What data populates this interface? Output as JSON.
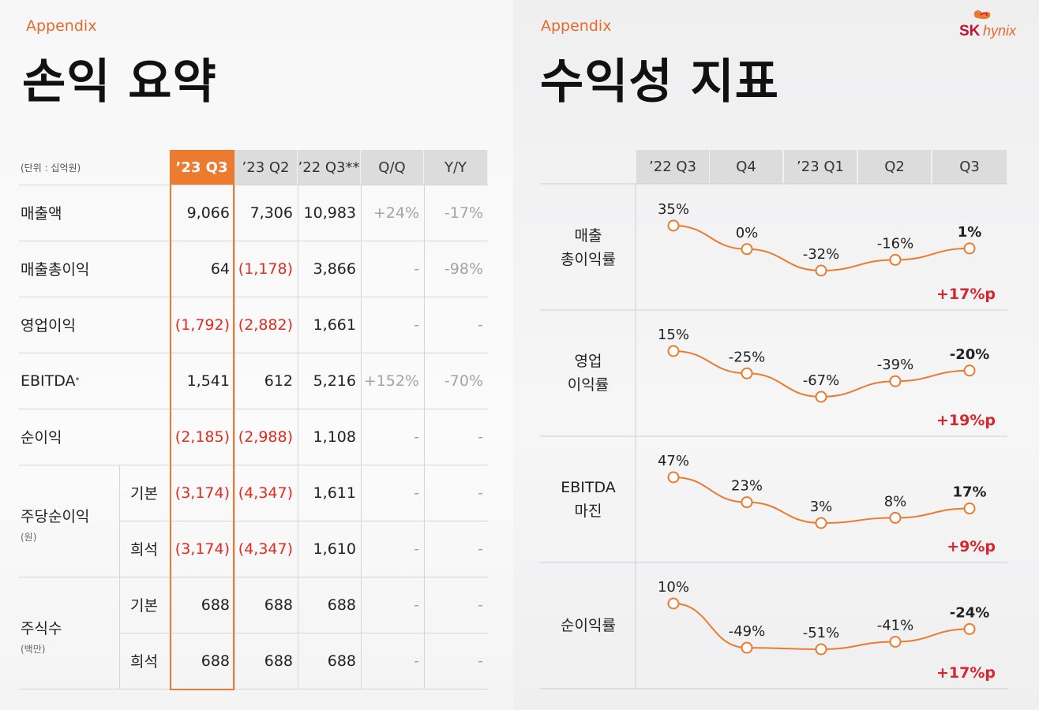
{
  "left": {
    "appendix": "Appendix",
    "title": "손익 요약",
    "unit": "(단위 : 십억원)",
    "columns": [
      "’23 Q3",
      "’23 Q2",
      "’22 Q3**",
      "Q/Q",
      "Y/Y"
    ],
    "rows": [
      {
        "label": "매출액",
        "values": [
          "9,066",
          "7,306",
          "10,983",
          "+24%",
          "-17%"
        ]
      },
      {
        "label": "매출총이익",
        "values": [
          "64",
          "(1,178)",
          "3,866",
          "-",
          "-98%"
        ]
      },
      {
        "label": "영업이익",
        "values": [
          "(1,792)",
          "(2,882)",
          "1,661",
          "-",
          "-"
        ]
      },
      {
        "label": "EBITDA",
        "label_sup": "*",
        "values": [
          "1,541",
          "612",
          "5,216",
          "+152%",
          "-70%"
        ]
      },
      {
        "label": "순이익",
        "values": [
          "(2,185)",
          "(2,988)",
          "1,108",
          "-",
          "-"
        ]
      }
    ],
    "groups": [
      {
        "label": "주당순이익",
        "unit": "(원)",
        "sub": [
          {
            "label": "기본",
            "values": [
              "(3,174)",
              "(4,347)",
              "1,611",
              "-",
              "-"
            ]
          },
          {
            "label": "희석",
            "values": [
              "(3,174)",
              "(4,347)",
              "1,610",
              "-",
              "-"
            ]
          }
        ]
      },
      {
        "label": "주식수",
        "unit": "(백만)",
        "sub": [
          {
            "label": "기본",
            "values": [
              "688",
              "688",
              "688",
              "-",
              "-"
            ]
          },
          {
            "label": "희석",
            "values": [
              "688",
              "688",
              "688",
              "-",
              "-"
            ]
          }
        ]
      }
    ]
  },
  "right": {
    "appendix": "Appendix",
    "title": "수익성 지표",
    "logo": {
      "brand": "SK",
      "name": "hynix"
    }
  },
  "colors": {
    "accent": "#ea7b2f",
    "negative": "#e12b20",
    "delta": "#d8262f"
  },
  "chart_data": {
    "type": "line",
    "categories": [
      "’22 Q3",
      "Q4",
      "’23 Q1",
      "Q2",
      "Q3"
    ],
    "series": [
      {
        "name": "매출 총이익률",
        "lines": [
          "매출",
          "총이익률"
        ],
        "values": [
          35,
          0,
          -32,
          -16,
          1
        ],
        "labels": [
          "35%",
          "0%",
          "-32%",
          "-16%",
          "1%"
        ],
        "delta": "+17%p"
      },
      {
        "name": "영업 이익률",
        "lines": [
          "영업",
          "이익률"
        ],
        "values": [
          15,
          -25,
          -67,
          -39,
          -20
        ],
        "labels": [
          "15%",
          "-25%",
          "-67%",
          "-39%",
          "-20%"
        ],
        "delta": "+19%p"
      },
      {
        "name": "EBITDA 마진",
        "lines": [
          "EBITDA",
          "마진"
        ],
        "values": [
          47,
          23,
          3,
          8,
          17
        ],
        "labels": [
          "47%",
          "23%",
          "3%",
          "8%",
          "17%"
        ],
        "delta": "+9%p"
      },
      {
        "name": "순이익률",
        "lines": [
          "순이익률"
        ],
        "values": [
          10,
          -49,
          -51,
          -41,
          -24
        ],
        "labels": [
          "10%",
          "-49%",
          "-51%",
          "-41%",
          "-24%"
        ],
        "delta": "+17%p"
      }
    ]
  }
}
